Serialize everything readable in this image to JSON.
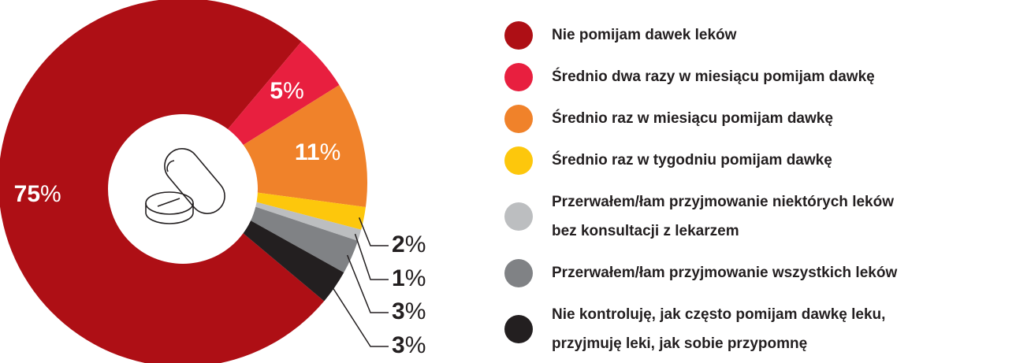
{
  "chart_data": {
    "type": "donut",
    "categories": [
      "Nie pomijam dawek leków",
      "Średnio dwa razy w miesiącu pomijam dawkę",
      "Średnio raz w miesiącu pomijam dawkę",
      "Średnio raz w tygodniu pomijam dawkę",
      "Przerwałem/łam przyjmowanie niektórych leków\nbez konsultacji z lekarzem",
      "Przerwałem/łam przyjmowanie wszystkich leków",
      "Nie kontroluję, jak często pomijam dawkę leku,\nprzyjmuję leki, jak sobie przypomnę"
    ],
    "values": [
      75,
      5,
      11,
      2,
      1,
      3,
      3
    ],
    "value_labels": [
      "75%",
      "5%",
      "11%",
      "2%",
      "1%",
      "3%",
      "3%"
    ],
    "colors": [
      "#ae0f15",
      "#e81f3f",
      "#f0822a",
      "#fdc70c",
      "#bcbec0",
      "#808285",
      "#231f20"
    ]
  }
}
